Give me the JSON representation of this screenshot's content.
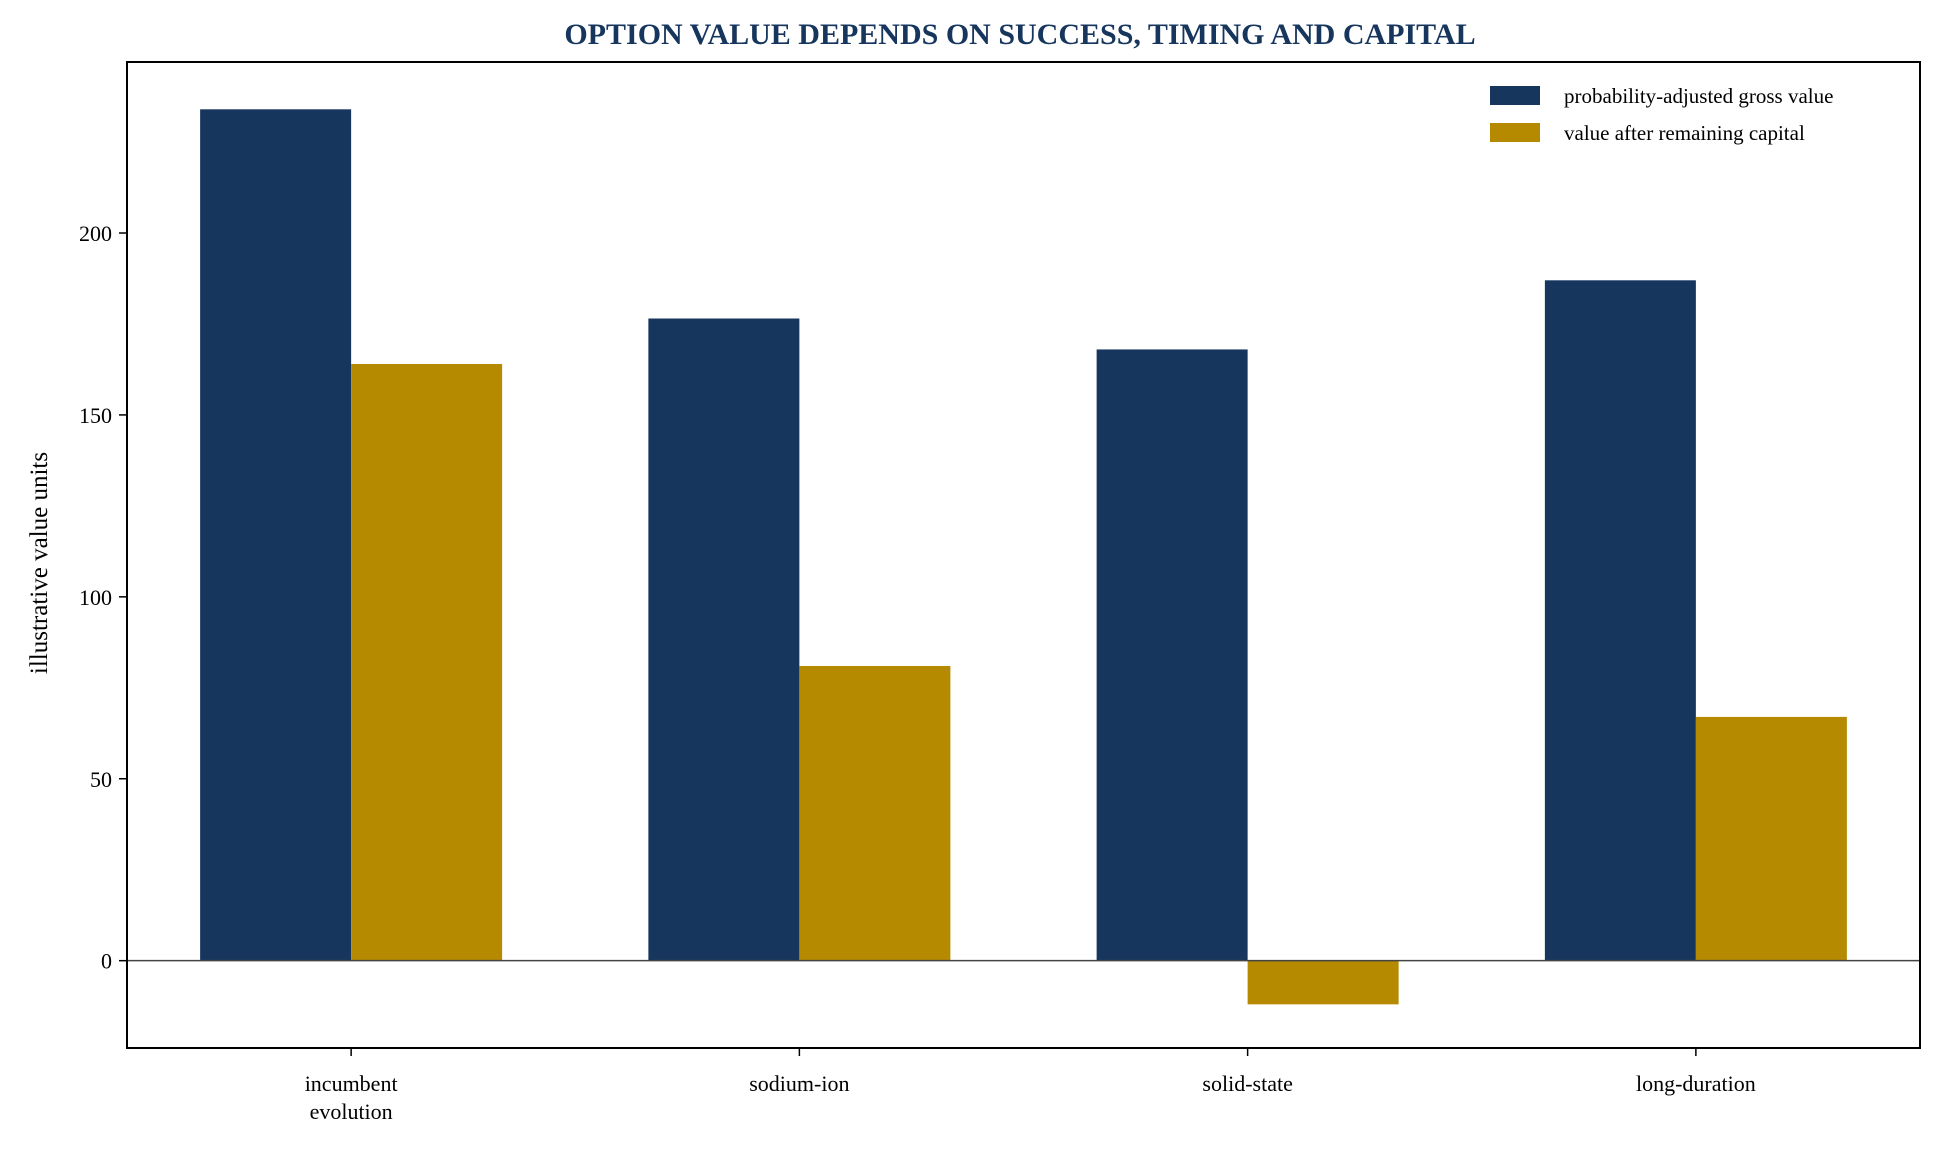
{
  "chart_data": {
    "type": "bar",
    "title": "OPTION VALUE DEPENDS ON SUCCESS, TIMING AND CAPITAL",
    "xlabel": "",
    "ylabel": "illustrative value units",
    "categories": [
      [
        "incumbent",
        "evolution"
      ],
      [
        "sodium-ion"
      ],
      [
        "solid-state"
      ],
      [
        "long-duration"
      ]
    ],
    "series": [
      {
        "name": "probability-adjusted gross value",
        "color": "#17365d",
        "values": [
          234,
          176.5,
          168,
          187
        ]
      },
      {
        "name": "value after remaining capital",
        "color": "#b58900",
        "values": [
          164,
          81,
          -12,
          67
        ]
      }
    ],
    "yticks": [
      0,
      50,
      100,
      150,
      200
    ],
    "ylim": [
      -24,
      247
    ],
    "zero_line": true,
    "grid": false,
    "legend_position": "top-right",
    "title_color": "#17365d"
  }
}
